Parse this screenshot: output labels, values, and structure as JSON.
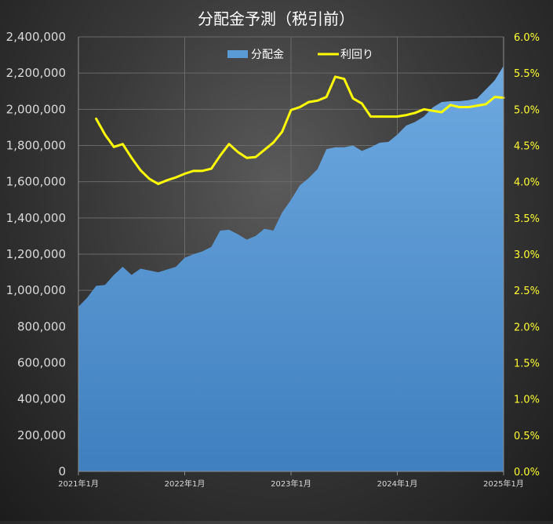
{
  "chart_data": {
    "type": "area+line",
    "title": "分配金予測（税引前）",
    "x_labels": [
      "2021年1月",
      "2022年1月",
      "2023年1月",
      "2024年1月",
      "2025年1月"
    ],
    "y_left": {
      "min": 0,
      "max": 2400000,
      "step": 200000,
      "ticks": [
        "0",
        "200,000",
        "400,000",
        "600,000",
        "800,000",
        "1,000,000",
        "1,200,000",
        "1,400,000",
        "1,600,000",
        "1,800,000",
        "2,000,000",
        "2,200,000",
        "2,400,000"
      ]
    },
    "y_right": {
      "min": 0,
      "max": 6.0,
      "step": 0.5,
      "ticks": [
        "0.0%",
        "0.5%",
        "1.0%",
        "1.5%",
        "2.0%",
        "2.5%",
        "3.0%",
        "3.5%",
        "4.0%",
        "4.5%",
        "5.0%",
        "5.5%",
        "6.0%"
      ]
    },
    "grid": true,
    "legend": {
      "position": "top-center"
    },
    "series": [
      {
        "name": "分配金",
        "type": "area",
        "color": "#5b9bd5",
        "x": [
          0,
          1,
          2,
          3,
          4,
          5,
          6,
          7,
          8,
          9,
          10,
          11,
          12,
          13,
          14,
          15,
          16,
          17,
          18,
          19,
          20,
          21,
          22,
          23,
          24,
          25,
          26,
          27,
          28,
          29,
          30,
          31,
          32,
          33,
          34,
          35,
          36,
          37,
          38,
          39,
          40,
          41,
          42,
          43,
          44,
          45,
          46,
          47,
          48
        ],
        "values": [
          910000,
          960000,
          1025000,
          1030000,
          1085000,
          1130000,
          1085000,
          1120000,
          1110000,
          1100000,
          1115000,
          1130000,
          1180000,
          1200000,
          1215000,
          1240000,
          1330000,
          1335000,
          1310000,
          1280000,
          1300000,
          1340000,
          1330000,
          1430000,
          1500000,
          1580000,
          1620000,
          1670000,
          1780000,
          1790000,
          1790000,
          1800000,
          1770000,
          1790000,
          1815000,
          1820000,
          1860000,
          1910000,
          1930000,
          1960000,
          2010000,
          2040000,
          2045000,
          2045000,
          2050000,
          2060000,
          2110000,
          2160000,
          2240000
        ]
      },
      {
        "name": "利回り",
        "type": "line",
        "color": "#ffff00",
        "x": [
          2,
          3,
          4,
          5,
          6,
          7,
          8,
          9,
          10,
          11,
          12,
          13,
          14,
          15,
          16,
          17,
          18,
          19,
          20,
          21,
          22,
          23,
          24,
          25,
          26,
          27,
          28,
          29,
          30,
          31,
          32,
          33,
          34,
          35,
          36,
          37,
          38,
          39,
          40,
          41,
          42,
          43,
          44,
          45,
          46,
          47,
          48
        ],
        "values": [
          4.87,
          4.65,
          4.48,
          4.52,
          4.33,
          4.16,
          4.04,
          3.97,
          4.02,
          4.06,
          4.11,
          4.15,
          4.15,
          4.18,
          4.36,
          4.52,
          4.41,
          4.33,
          4.34,
          4.44,
          4.54,
          4.69,
          4.99,
          5.03,
          5.1,
          5.12,
          5.17,
          5.45,
          5.42,
          5.15,
          5.08,
          4.9,
          4.9,
          4.9,
          4.9,
          4.92,
          4.95,
          5.0,
          4.98,
          4.96,
          5.06,
          5.03,
          5.03,
          5.05,
          5.07,
          5.17,
          5.16
        ]
      }
    ]
  }
}
